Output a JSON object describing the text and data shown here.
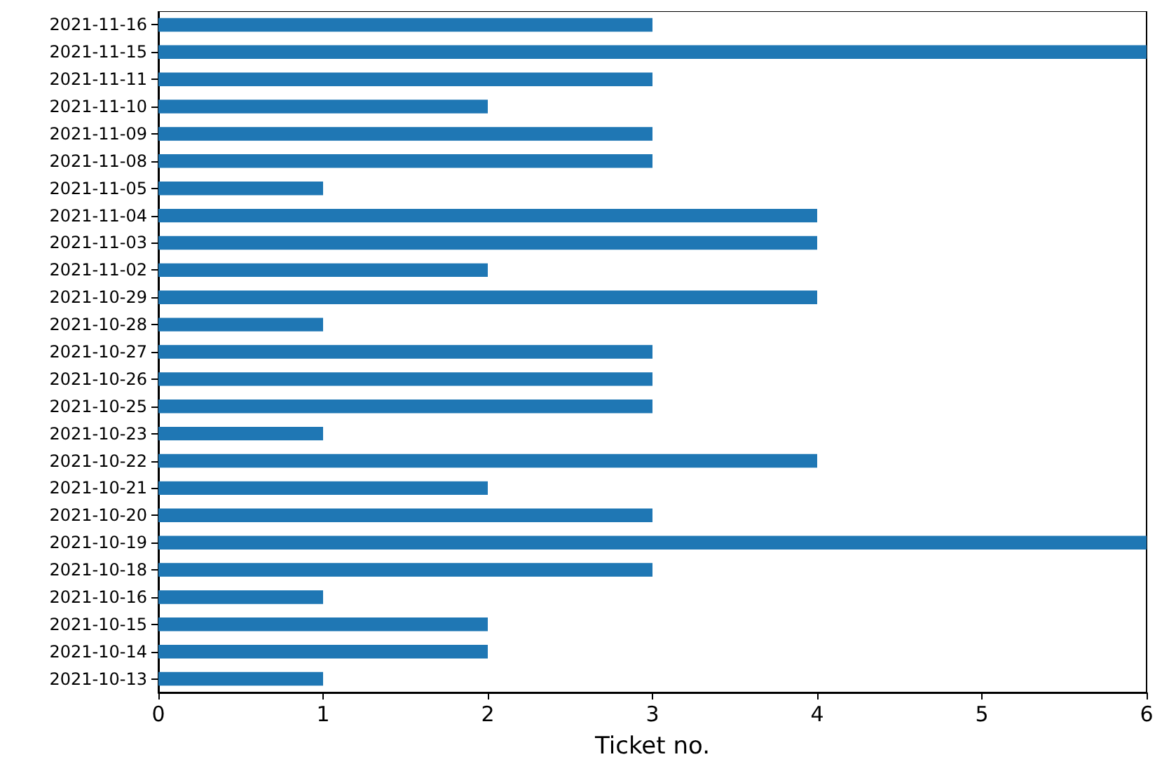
{
  "chart_data": {
    "type": "bar",
    "orientation": "horizontal",
    "xlabel": "Ticket no.",
    "categories": [
      "2021-11-16",
      "2021-11-15",
      "2021-11-11",
      "2021-11-10",
      "2021-11-09",
      "2021-11-08",
      "2021-11-05",
      "2021-11-04",
      "2021-11-03",
      "2021-11-02",
      "2021-10-29",
      "2021-10-28",
      "2021-10-27",
      "2021-10-26",
      "2021-10-25",
      "2021-10-23",
      "2021-10-22",
      "2021-10-21",
      "2021-10-20",
      "2021-10-19",
      "2021-10-18",
      "2021-10-16",
      "2021-10-15",
      "2021-10-14",
      "2021-10-13"
    ],
    "values": [
      3,
      6,
      3,
      2,
      3,
      3,
      1,
      4,
      4,
      2,
      4,
      1,
      3,
      3,
      3,
      1,
      4,
      2,
      3,
      6,
      3,
      1,
      2,
      2,
      1
    ],
    "color": "#1f77b4",
    "xlim": [
      0,
      6
    ],
    "xticks": [
      0,
      1,
      2,
      3,
      4,
      5,
      6
    ],
    "grid": false
  }
}
